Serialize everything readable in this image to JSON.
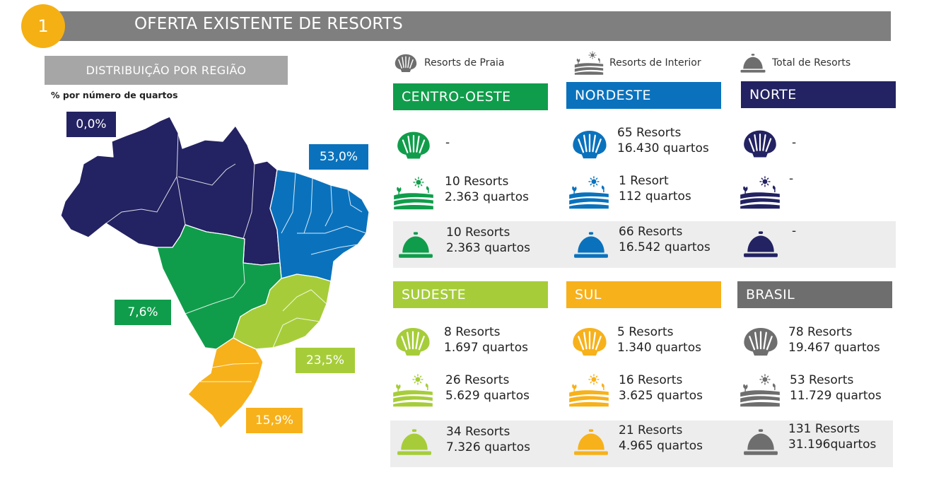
{
  "badge": "1",
  "title": "OFERTA EXISTENTE DE RESORTS",
  "map_panel": {
    "label": "DISTRIBUIÇÃO POR REGIÃO",
    "subtitle": "% por número de quartos",
    "percentages": {
      "norte": "0,0%",
      "nordeste": "53,0%",
      "centro_oeste": "7,6%",
      "sudeste": "23,5%",
      "sul": "15,9%"
    }
  },
  "legend": [
    {
      "label": "Resorts de Praia",
      "icon": "shell-icon"
    },
    {
      "label": "Resorts de Interior",
      "icon": "field-sun-icon"
    },
    {
      "label": "Total de Resorts",
      "icon": "service-bell-icon"
    }
  ],
  "colors": {
    "norte": "#232262",
    "nordeste": "#0a72bd",
    "centro_oeste": "#109d4b",
    "sudeste": "#a6cd39",
    "sul": "#f7b11b",
    "brasil": "#6e6e6e",
    "header": "#7f7f7f",
    "badge": "#f5b014"
  },
  "regions": [
    {
      "key": "centro_oeste",
      "name": "CENTRO-OESTE",
      "praia": {
        "resorts": "-",
        "quartos": ""
      },
      "interior": {
        "resorts": "10 Resorts",
        "quartos": "2.363 quartos"
      },
      "total": {
        "resorts": "10 Resorts",
        "quartos": "2.363 quartos"
      }
    },
    {
      "key": "nordeste",
      "name": "NORDESTE",
      "praia": {
        "resorts": "65 Resorts",
        "quartos": "16.430 quartos"
      },
      "interior": {
        "resorts": "1 Resort",
        "quartos": "112 quartos"
      },
      "total": {
        "resorts": "66 Resorts",
        "quartos": "16.542 quartos"
      }
    },
    {
      "key": "norte",
      "name": "NORTE",
      "praia": {
        "resorts": "-",
        "quartos": ""
      },
      "interior": {
        "resorts": "-",
        "quartos": ""
      },
      "total": {
        "resorts": "-",
        "quartos": ""
      }
    },
    {
      "key": "sudeste",
      "name": "SUDESTE",
      "praia": {
        "resorts": "8 Resorts",
        "quartos": "1.697 quartos"
      },
      "interior": {
        "resorts": "26 Resorts",
        "quartos": "5.629 quartos"
      },
      "total": {
        "resorts": "34 Resorts",
        "quartos": "7.326 quartos"
      }
    },
    {
      "key": "sul",
      "name": "SUL",
      "praia": {
        "resorts": "5 Resorts",
        "quartos": "1.340 quartos"
      },
      "interior": {
        "resorts": "16 Resorts",
        "quartos": "3.625 quartos"
      },
      "total": {
        "resorts": "21 Resorts",
        "quartos": "4.965 quartos"
      }
    },
    {
      "key": "brasil",
      "name": "BRASIL",
      "praia": {
        "resorts": "78 Resorts",
        "quartos": "19.467 quartos"
      },
      "interior": {
        "resorts": "53 Resorts",
        "quartos": "11.729 quartos"
      },
      "total": {
        "resorts": "131 Resorts",
        "quartos": "31.196quartos"
      }
    }
  ]
}
